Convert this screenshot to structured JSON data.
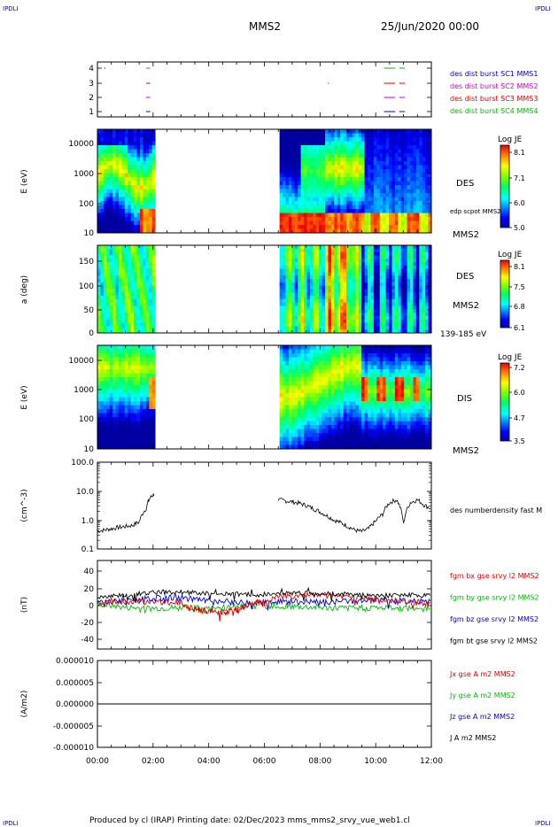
{
  "header": {
    "corner_left_top": "IPDLI",
    "corner_right_top": "IPDLI",
    "corner_left_bottom": "IPDLI",
    "corner_right_bottom": "IPDLI",
    "mission": "MMS2",
    "datetime": "25/Jun/2020 00:00",
    "footer": "Produced by cl (IRAP)   Printing date: 02/Dec/2023   mms_mms2_srvy_vue_web1.cl"
  },
  "colors": {
    "blue": "#0000cc",
    "red": "#dd0000",
    "green": "#00bb00",
    "magenta": "#cc00cc",
    "black": "#000000"
  },
  "chart_data": [
    {
      "type": "scatter",
      "panel": "burst-availability",
      "ytick_labels": [
        "1",
        "2",
        "3",
        "4"
      ],
      "legend": [
        {
          "label": "des dist burst SC1 MMS1",
          "color": "#0000cc"
        },
        {
          "label": "des dist burst SC2 MMS2",
          "color": "#cc00cc"
        },
        {
          "label": "des dist burst SC3 MMS3",
          "color": "#dd0000"
        },
        {
          "label": "des dist burst SC4 MMS4",
          "color": "#00bb00"
        }
      ],
      "bursts": [
        {
          "sc": 4,
          "segments": [
            [
              1.75,
              1.9
            ],
            [
              10.3,
              10.7
            ],
            [
              10.85,
              11.05
            ]
          ]
        },
        {
          "sc": 3,
          "segments": [
            [
              1.75,
              1.9
            ],
            [
              8.28,
              8.32
            ],
            [
              10.3,
              10.7
            ],
            [
              10.85,
              11.05
            ]
          ]
        },
        {
          "sc": 2,
          "segments": [
            [
              1.75,
              1.9
            ],
            [
              10.3,
              10.7
            ],
            [
              10.85,
              11.05
            ]
          ]
        },
        {
          "sc": 1,
          "segments": [
            [
              1.75,
              1.9
            ],
            [
              10.3,
              10.7
            ],
            [
              10.85,
              11.05
            ]
          ]
        }
      ]
    },
    {
      "type": "heatmap",
      "panel": "des-energy",
      "ylabel": "E (eV)",
      "yscale": "log",
      "ytick_labels": [
        "10",
        "100",
        "1000",
        "10000"
      ],
      "label_main": "DES",
      "label_sub": "MMS2",
      "curve_label": "edp scpot MMS2",
      "colorbar": {
        "title": "Log JE",
        "tick_labels": [
          "5.0",
          "6.0",
          "7.1",
          "8.1"
        ]
      },
      "data_gaps_hours": [
        [
          2.05,
          6.5
        ]
      ]
    },
    {
      "type": "heatmap",
      "panel": "des-pitch-angle",
      "ylabel": "a (deg)",
      "ytick_labels": [
        "0",
        "50",
        "100",
        "150"
      ],
      "label_main": "DES",
      "label_sub": "MMS2",
      "label_energy": "139-185 eV",
      "colorbar": {
        "title": "Log JE",
        "tick_labels": [
          "6.1",
          "6.8",
          "7.5",
          "8.1"
        ]
      },
      "data_gaps_hours": [
        [
          2.05,
          6.5
        ]
      ]
    },
    {
      "type": "heatmap",
      "panel": "dis-energy",
      "ylabel": "E (eV)",
      "yscale": "log",
      "ytick_labels": [
        "10",
        "100",
        "1000",
        "10000"
      ],
      "label_main": "DIS",
      "label_sub": "MMS2",
      "colorbar": {
        "title": "Log JE",
        "tick_labels": [
          "3.5",
          "4.7",
          "6.0",
          "7.2"
        ]
      },
      "data_gaps_hours": [
        [
          2.05,
          6.5
        ]
      ]
    },
    {
      "type": "line",
      "panel": "density",
      "ylabel": "(cm^-3)",
      "yscale": "log",
      "ytick_labels": [
        "0.1",
        "1.0",
        "10.0",
        "100.0"
      ],
      "series": [
        {
          "name": "des numberdensity fast M",
          "x": [
            0,
            0.25,
            0.5,
            0.75,
            1.0,
            1.25,
            1.5,
            1.75,
            1.9,
            2.05,
            6.5,
            6.75,
            7.0,
            7.25,
            7.5,
            7.75,
            8.0,
            8.25,
            8.5,
            8.75,
            9.0,
            9.25,
            9.5,
            9.75,
            10.0,
            10.25,
            10.5,
            10.75,
            11.0,
            11.25,
            11.5,
            11.75,
            12.0
          ],
          "y": [
            0.42,
            0.45,
            0.5,
            0.55,
            0.6,
            0.65,
            0.85,
            2.5,
            6.0,
            8.0,
            5.0,
            4.6,
            4.3,
            3.8,
            3.2,
            2.5,
            1.9,
            1.4,
            1.0,
            0.8,
            0.6,
            0.45,
            0.4,
            0.5,
            0.9,
            1.6,
            4.0,
            5.0,
            0.7,
            4.0,
            5.0,
            3.2,
            2.5
          ]
        }
      ]
    },
    {
      "type": "line",
      "panel": "magnetic-field",
      "ylabel": "(nT)",
      "ytick_labels": [
        "-40",
        "-20",
        "0",
        "20",
        "40"
      ],
      "ylim": [
        -50,
        50
      ],
      "series": [
        {
          "name": "fgm bx gse srvy l2 MMS2",
          "color": "#dd0000",
          "x": [
            0,
            1,
            2,
            3,
            3.5,
            4,
            4.5,
            5,
            5.5,
            6,
            7,
            8,
            9,
            10,
            11,
            12
          ],
          "y": [
            3,
            4,
            5,
            3,
            -4,
            -6,
            -8,
            -5,
            2,
            6,
            11,
            12,
            10,
            6,
            4,
            3
          ]
        },
        {
          "name": "fgm by gse srvy l2 MMS2",
          "color": "#00bb00",
          "x": [
            0,
            1,
            2,
            3,
            4,
            5,
            6,
            7,
            8,
            9,
            10,
            11,
            12
          ],
          "y": [
            2,
            -2,
            -3,
            -2,
            -3,
            -2,
            0,
            -1,
            -2,
            -3,
            -2,
            -3,
            -2
          ]
        },
        {
          "name": "fgm bz gse srvy l2 MMS2",
          "color": "#0000cc",
          "x": [
            0,
            1,
            2,
            3,
            4,
            5,
            6,
            7,
            8,
            9,
            10,
            11,
            12
          ],
          "y": [
            4,
            6,
            8,
            9,
            5,
            4,
            3,
            5,
            4,
            5,
            6,
            5,
            4
          ]
        },
        {
          "name": "fgm bt gse srvy l2 MMS2",
          "color": "#000000",
          "x": [
            0,
            1,
            2,
            3,
            4,
            5,
            6,
            7,
            8,
            9,
            10,
            11,
            12
          ],
          "y": [
            9,
            12,
            15,
            15,
            14,
            13,
            12,
            14,
            14,
            13,
            11,
            12,
            11
          ]
        }
      ]
    },
    {
      "type": "line",
      "panel": "current-density",
      "ylabel": "(A/m2)",
      "ytick_labels": [
        "-0.000010",
        "-0.000005",
        "0.000000",
        "0.000005",
        "0.000010"
      ],
      "ylim": [
        -1e-05,
        1e-05
      ],
      "series": [
        {
          "name": "Jx gse A m2 MMS2",
          "color": "#dd0000",
          "x": [
            0,
            12
          ],
          "y": [
            0,
            0
          ]
        },
        {
          "name": "Jy gse A m2 MMS2",
          "color": "#00bb00",
          "x": [
            0,
            12
          ],
          "y": [
            0,
            0
          ]
        },
        {
          "name": "Jz gse A m2 MMS2",
          "color": "#0000cc",
          "x": [
            0,
            12
          ],
          "y": [
            0,
            0
          ]
        },
        {
          "name": "J A m2 MMS2",
          "color": "#000000",
          "x": [
            0,
            12
          ],
          "y": [
            0,
            0
          ]
        }
      ]
    }
  ],
  "time_axis": {
    "xlim_hours": [
      0,
      12
    ],
    "tick_labels": [
      "00:00",
      "02:00",
      "04:00",
      "06:00",
      "08:00",
      "10:00",
      "12:00"
    ]
  }
}
